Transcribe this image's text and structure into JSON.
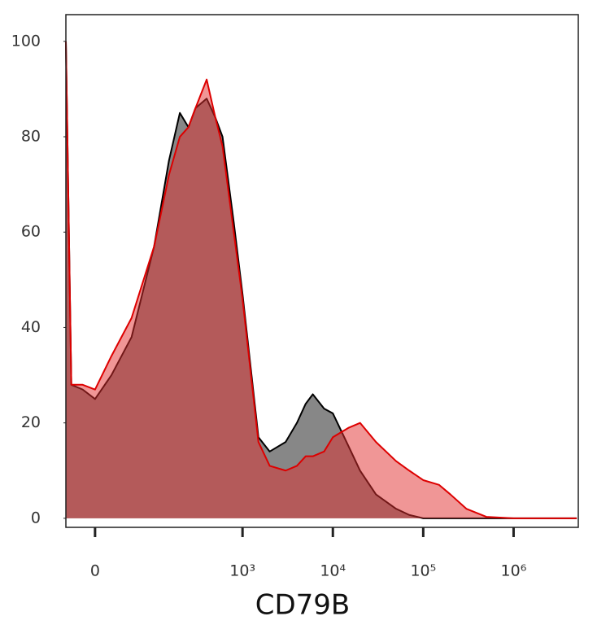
{
  "chart_data": {
    "type": "area",
    "x_label": "CD79B",
    "xscale": "arcsinh",
    "cofactor": 46.7,
    "x": [
      -38,
      -30,
      -15,
      0,
      20,
      50,
      100,
      150,
      200,
      250,
      300,
      400,
      500,
      600,
      800,
      1000,
      1500,
      2000,
      3000,
      4000,
      5000,
      6000,
      8000,
      10000,
      15000,
      20000,
      30000,
      50000,
      70000,
      100000,
      150000,
      200000,
      300000,
      500000,
      1000000,
      5000000
    ],
    "series": [
      {
        "name": "black",
        "color": "#000000",
        "fill": "rgba(95,95,95,0.75)",
        "values": [
          100,
          28,
          27,
          25,
          30,
          38,
          57,
          75,
          85,
          82,
          86,
          88,
          84,
          80,
          62,
          47,
          17,
          14,
          16,
          20,
          24,
          26,
          23,
          22,
          15,
          10,
          5,
          2,
          0.7,
          0,
          0,
          0,
          0,
          0,
          0,
          0
        ]
      },
      {
        "name": "red",
        "color": "#dd0000",
        "fill": "rgba(225,45,45,0.5)",
        "values": [
          100,
          28,
          28,
          27,
          34,
          42,
          57,
          72,
          80,
          82,
          86,
          92,
          84,
          78,
          60,
          46,
          16,
          11,
          10,
          11,
          13,
          13,
          14,
          17,
          19,
          20,
          16,
          12,
          10,
          8,
          7,
          5,
          2,
          0.3,
          0,
          0
        ]
      }
    ],
    "xlim": [
      -38,
      5200000
    ],
    "xticks": [
      0,
      {
        "value": 1000,
        "label": "10³"
      },
      {
        "value": 10000,
        "label": "10⁴"
      },
      {
        "value": 100000,
        "label": "10⁵"
      },
      {
        "value": 1000000,
        "label": "10⁶"
      }
    ],
    "ylim": [
      -1.9,
      105.6
    ],
    "yticks": [
      0,
      20,
      40,
      60,
      80,
      100
    ],
    "grid": false
  }
}
